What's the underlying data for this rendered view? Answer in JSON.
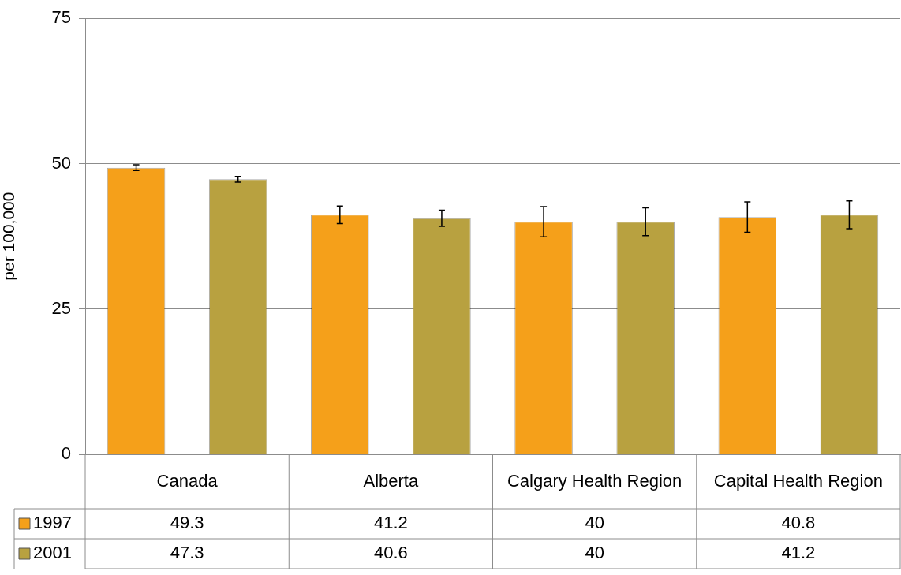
{
  "chart_data": {
    "type": "bar",
    "ylabel": "per 100,000",
    "categories": [
      "Canada",
      "Alberta",
      "Calgary Health Region",
      "Capital Health Region"
    ],
    "series": [
      {
        "name": "1997",
        "color": "#f5a01a",
        "values": [
          49.3,
          41.2,
          40,
          40.8
        ],
        "errors": [
          0.5,
          1.5,
          2.6,
          2.6
        ]
      },
      {
        "name": "2001",
        "color": "#b8a140",
        "values": [
          47.3,
          40.6,
          40,
          41.2
        ],
        "errors": [
          0.5,
          1.4,
          2.4,
          2.4
        ]
      }
    ],
    "ylim": [
      0,
      75
    ],
    "yticks": [
      0,
      25,
      50,
      75
    ],
    "grid": "y",
    "legend": "bottom",
    "data_labels": true
  }
}
